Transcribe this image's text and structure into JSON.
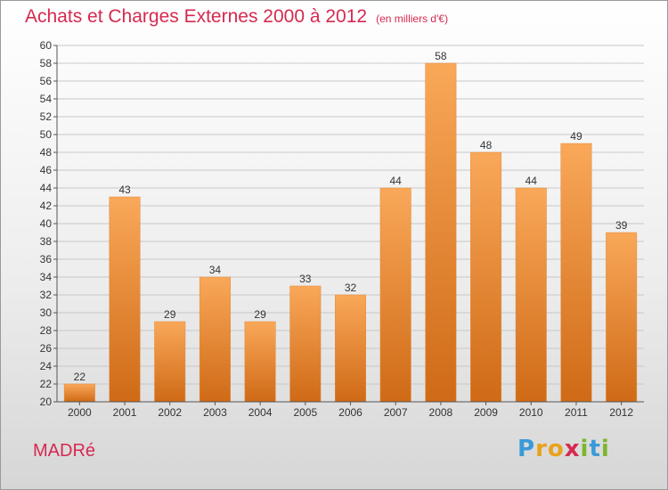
{
  "title": "Achats et Charges Externes 2000 à 2012",
  "subtitle": "(en milliers d'€)",
  "commune": "MADRé",
  "logo": {
    "text": "Proxiti",
    "letters": [
      {
        "ch": "P",
        "color": "#3a9ad9"
      },
      {
        "ch": "r",
        "color": "#e8a21b"
      },
      {
        "ch": "o",
        "color": "#e8a21b"
      },
      {
        "ch": "x",
        "color": "#d6294f"
      },
      {
        "ch": "i",
        "color": "#7db52e"
      },
      {
        "ch": "t",
        "color": "#3a9ad9"
      },
      {
        "ch": "i",
        "color": "#7db52e"
      }
    ]
  },
  "colors": {
    "accent": "#d6294f",
    "bar_light": "#f9a859",
    "bar_dark": "#cf6a16",
    "grid": "#c8c8c8"
  },
  "chart_data": {
    "type": "bar",
    "categories": [
      "2000",
      "2001",
      "2002",
      "2003",
      "2004",
      "2005",
      "2006",
      "2007",
      "2008",
      "2009",
      "2010",
      "2011",
      "2012"
    ],
    "values": [
      22,
      43,
      29,
      34,
      29,
      33,
      32,
      44,
      58,
      48,
      44,
      49,
      39
    ],
    "title": "Achats et Charges Externes 2000 à 2012",
    "subtitle": "(en milliers d'€)",
    "xlabel": "",
    "ylabel": "",
    "ylim": [
      20,
      60
    ],
    "ytick_step": 2,
    "grid": true,
    "data_labels": true
  }
}
